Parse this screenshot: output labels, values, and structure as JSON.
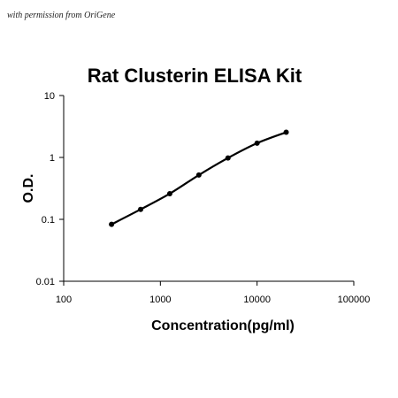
{
  "watermark": "with permission from OriGene",
  "chart_data": {
    "type": "line",
    "title": "Rat Clusterin ELISA Kit",
    "xlabel": "Concentration(pg/ml)",
    "ylabel": "O.D.",
    "x_scale": "log",
    "y_scale": "log",
    "xlim": [
      100,
      100000
    ],
    "ylim": [
      0.01,
      10
    ],
    "x_ticks": [
      "100",
      "1000",
      "10000",
      "100000"
    ],
    "y_ticks": [
      "0.01",
      "0.1",
      "1",
      "10"
    ],
    "grid": false,
    "legend": "none",
    "series": [
      {
        "x": [
          312.5,
          625,
          1250,
          2500,
          5000,
          10000,
          20000
        ],
        "y": [
          0.083,
          0.145,
          0.26,
          0.52,
          0.98,
          1.7,
          2.55
        ]
      }
    ],
    "colors": {
      "line": "#000000",
      "marker": "#000000"
    }
  }
}
